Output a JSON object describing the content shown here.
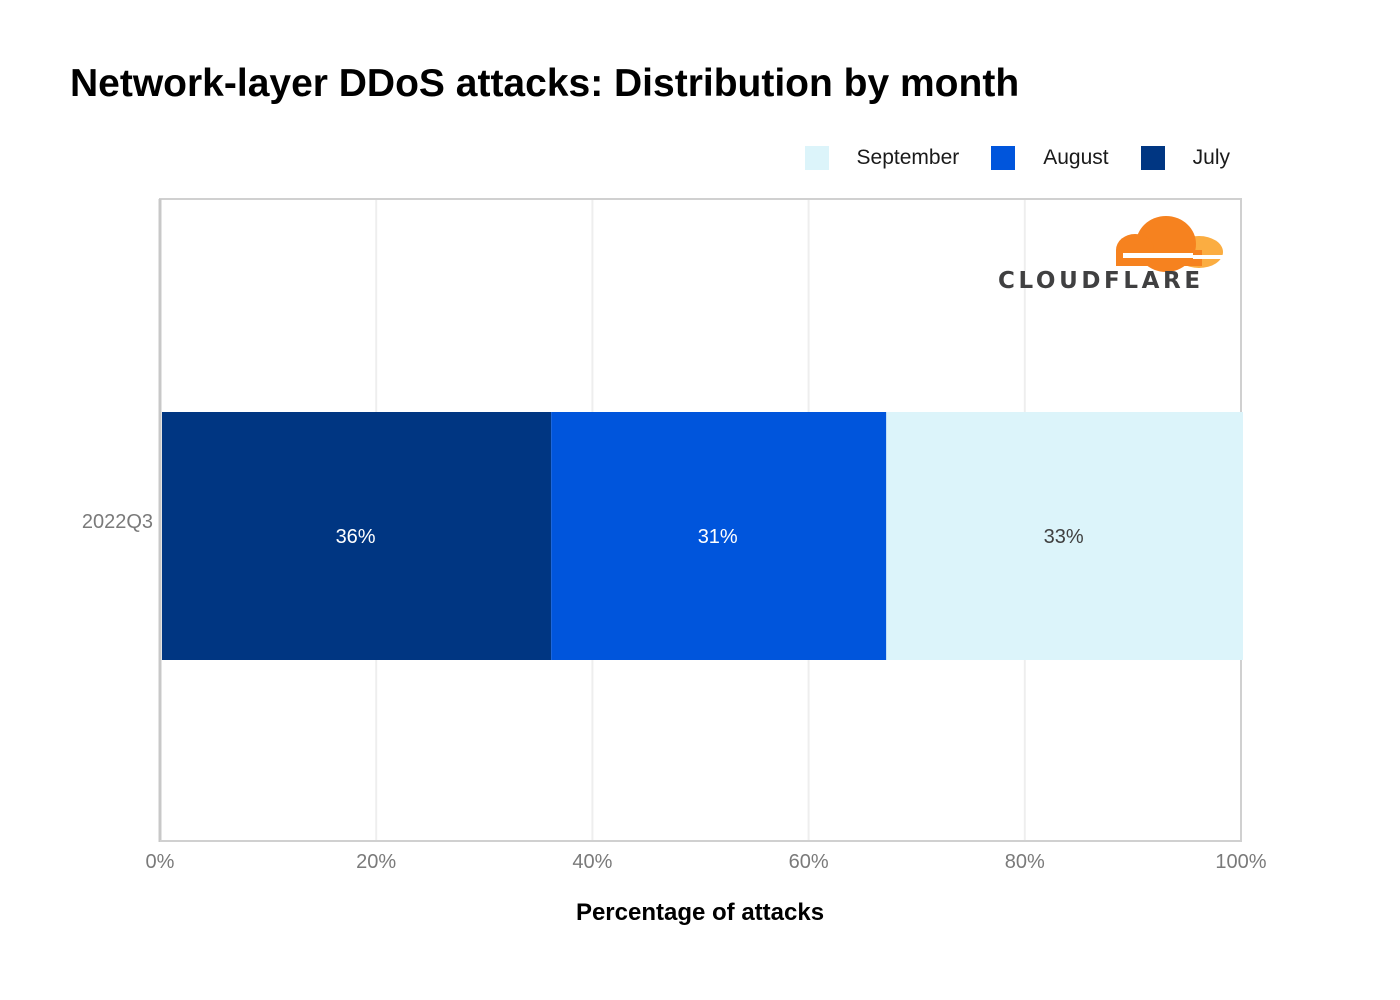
{
  "chart_data": {
    "type": "bar",
    "orientation": "horizontal",
    "stacked": true,
    "title": "Network-layer DDoS attacks: Distribution by month",
    "xlabel": "Percentage of attacks",
    "ylabel": "",
    "xlim": [
      0,
      100
    ],
    "x_ticks": [
      "0%",
      "20%",
      "40%",
      "60%",
      "80%",
      "100%"
    ],
    "categories": [
      "2022Q3"
    ],
    "series": [
      {
        "name": "July",
        "values": [
          36
        ],
        "labels": [
          "36%"
        ],
        "color": "#003682",
        "label_color": "#ffffff"
      },
      {
        "name": "August",
        "values": [
          31
        ],
        "labels": [
          "31%"
        ],
        "color": "#0055dc",
        "label_color": "#ffffff"
      },
      {
        "name": "September",
        "values": [
          33
        ],
        "labels": [
          "33%"
        ],
        "color": "#dcf4fa",
        "label_color": "#404040"
      }
    ],
    "legend_order": [
      "September",
      "August",
      "July"
    ],
    "legend_position": "top-right",
    "grid": true
  },
  "logo": {
    "text": "CLOUDFLARE",
    "colors": [
      "#f6821f",
      "#fbad41"
    ]
  }
}
